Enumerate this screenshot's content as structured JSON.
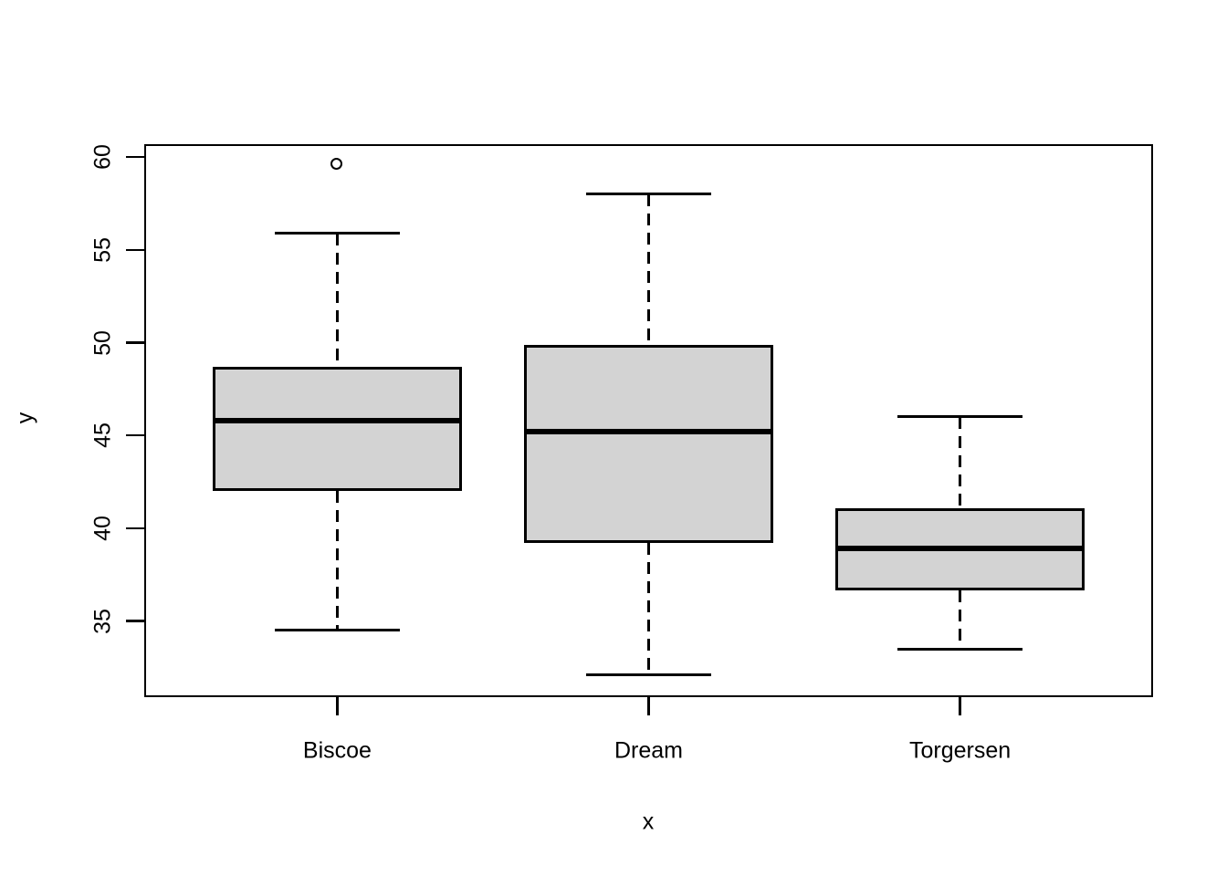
{
  "chart_data": {
    "type": "boxplot",
    "title": "",
    "xlabel": "x",
    "ylabel": "y",
    "categories": [
      "Biscoe",
      "Dream",
      "Torgersen"
    ],
    "series": [
      {
        "name": "Biscoe",
        "whisker_low": 34.5,
        "q1": 42.0,
        "median": 45.8,
        "q3": 48.7,
        "whisker_high": 55.9,
        "outliers": [
          59.6
        ]
      },
      {
        "name": "Dream",
        "whisker_low": 32.1,
        "q1": 39.2,
        "median": 45.2,
        "q3": 49.9,
        "whisker_high": 58.0,
        "outliers": []
      },
      {
        "name": "Torgersen",
        "whisker_low": 33.5,
        "q1": 36.65,
        "median": 38.9,
        "q3": 41.1,
        "whisker_high": 46.0,
        "outliers": []
      }
    ],
    "y_ticks": [
      35,
      40,
      45,
      50,
      55,
      60
    ],
    "ylim": [
      30.9,
      60.7
    ],
    "xlim": [
      0.38,
      3.62
    ],
    "positions": [
      1,
      2,
      3
    ],
    "box_width": 0.8,
    "cap_width": 0.4,
    "grid": false,
    "legend": "none",
    "box_fill": "#d3d3d3",
    "line_color": "#000000",
    "background": "#ffffff"
  }
}
